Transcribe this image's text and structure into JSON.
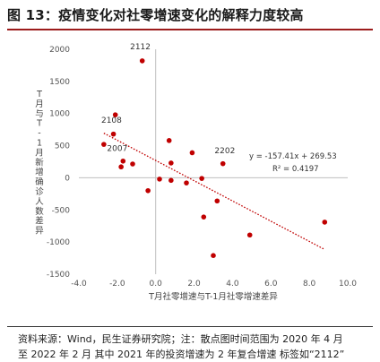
{
  "title": "图 13：疫情变化对社零增速变化的解释力度较高",
  "source": {
    "line1": "资料来源：Wind，民生证券研究院；注：散点图时间范围为 2020 年 4 月",
    "line2": "至 2022 年 2 月 其中 2021 年的投资增速为 2 年复合增速 标签如“2112”"
  },
  "chart_data": {
    "type": "scatter",
    "xlabel": "T月社零增速与T-1月社零增速差异",
    "ylabel": "T月与T-1月新增确诊人数差异",
    "xlim": [
      -4.0,
      10.0
    ],
    "ylim": [
      -1500,
      2000
    ],
    "xticks": [
      "-4.0",
      "-2.0",
      "0.0",
      "2.0",
      "4.0",
      "6.0",
      "8.0",
      "10.0"
    ],
    "yticks": [
      "2000",
      "1500",
      "1000",
      "500",
      "0",
      "-500",
      "-1000",
      "-1500"
    ],
    "point_color": "#c00000",
    "points": [
      {
        "x": -0.7,
        "y": 1820
      },
      {
        "x": -2.1,
        "y": 980
      },
      {
        "x": -2.2,
        "y": 680
      },
      {
        "x": -2.7,
        "y": 520
      },
      {
        "x": -1.7,
        "y": 260
      },
      {
        "x": -1.2,
        "y": 215
      },
      {
        "x": -1.8,
        "y": 170
      },
      {
        "x": -0.4,
        "y": -200
      },
      {
        "x": 0.2,
        "y": -20
      },
      {
        "x": 0.7,
        "y": 580
      },
      {
        "x": 0.8,
        "y": 230
      },
      {
        "x": 0.8,
        "y": -40
      },
      {
        "x": 1.6,
        "y": -80
      },
      {
        "x": 1.9,
        "y": 390
      },
      {
        "x": 2.4,
        "y": -10
      },
      {
        "x": 2.5,
        "y": -610
      },
      {
        "x": 3.2,
        "y": -360
      },
      {
        "x": 3.5,
        "y": 220
      },
      {
        "x": 3.0,
        "y": -1210
      },
      {
        "x": 4.9,
        "y": -890
      },
      {
        "x": 8.8,
        "y": -690
      }
    ],
    "annotations": [
      {
        "text": "2112",
        "x": -0.8,
        "y": 2000
      },
      {
        "text": "2108",
        "x": -2.3,
        "y": 860
      },
      {
        "text": "2007",
        "x": -2.0,
        "y": 420
      },
      {
        "text": "2202",
        "x": 3.6,
        "y": 380
      }
    ],
    "trendline": {
      "slope": -157.41,
      "intercept": 269.53,
      "x_range": [
        -2.7,
        8.8
      ],
      "equation": "y = -157.41x + 269.53",
      "r2": "R² = 0.4197",
      "color": "#c00000"
    }
  }
}
